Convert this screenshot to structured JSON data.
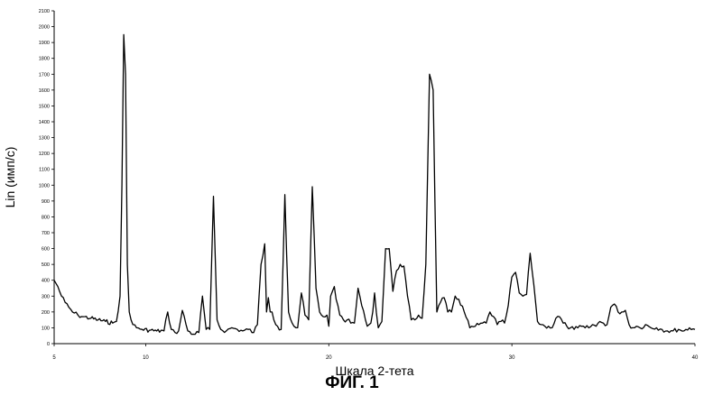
{
  "figure_label": "ФИГ. 1",
  "chart_data": {
    "type": "line",
    "xlabel": "Шкала 2-тета",
    "ylabel": "Lin (имп/с)",
    "xlim": [
      5,
      40
    ],
    "ylim": [
      0,
      2100
    ],
    "x_ticks": [
      5,
      10,
      20,
      30,
      40
    ],
    "y_ticks": [
      0,
      100,
      200,
      300,
      400,
      500,
      600,
      700,
      800,
      900,
      1000,
      1100,
      1200,
      1300,
      1400,
      1500,
      1600,
      1700,
      1800,
      1900,
      2000,
      2100
    ],
    "grid": false,
    "series": [
      {
        "color": "#000000",
        "x": [
          5.0,
          5.2,
          5.4,
          5.6,
          5.8,
          6.0,
          6.3,
          6.6,
          7.0,
          7.4,
          7.8,
          8.2,
          8.4,
          8.6,
          8.7,
          8.8,
          8.9,
          9.0,
          9.1,
          9.2,
          9.3,
          9.5,
          9.8,
          10.2,
          10.6,
          11.0,
          11.2,
          11.4,
          11.6,
          11.8,
          12.0,
          12.3,
          12.6,
          12.9,
          13.1,
          13.3,
          13.5,
          13.7,
          13.9,
          14.1,
          14.4,
          14.7,
          15.0,
          15.3,
          15.6,
          15.9,
          16.1,
          16.3,
          16.5,
          16.6,
          16.7,
          16.8,
          16.9,
          17.0,
          17.2,
          17.4,
          17.6,
          17.8,
          18.0,
          18.1,
          18.3,
          18.5,
          18.7,
          18.9,
          19.1,
          19.3,
          19.5,
          19.7,
          19.9,
          20.0,
          20.1,
          20.2,
          20.3,
          20.4,
          20.5,
          20.6,
          20.8,
          21.0,
          21.2,
          21.4,
          21.6,
          21.8,
          22.0,
          22.1,
          22.2,
          22.3,
          22.4,
          22.5,
          22.7,
          22.9,
          23.1,
          23.3,
          23.5,
          23.7,
          23.9,
          24.1,
          24.3,
          24.5,
          24.7,
          24.9,
          25.1,
          25.3,
          25.5,
          25.7,
          25.9,
          26.1,
          26.3,
          26.5,
          26.7,
          26.9,
          27.1,
          27.4,
          27.7,
          28.0,
          28.2,
          28.4,
          28.6,
          28.8,
          29.0,
          29.2,
          29.4,
          29.6,
          29.8,
          30.0,
          30.2,
          30.4,
          30.6,
          30.8,
          31.0,
          31.2,
          31.4,
          31.6,
          31.8,
          32.0,
          32.2,
          32.4,
          32.6,
          32.8,
          33.0,
          33.2,
          33.4,
          33.6,
          33.8,
          34.0,
          34.2,
          34.4,
          34.6,
          34.8,
          35.0,
          35.2,
          35.4,
          35.6,
          35.8,
          36.0,
          36.2,
          36.4,
          36.6,
          36.8,
          37.0,
          37.3,
          37.6,
          37.9,
          38.2,
          38.5,
          38.8,
          39.1,
          39.4,
          39.7,
          40.0
        ],
        "y": [
          400,
          360,
          300,
          260,
          230,
          200,
          180,
          170,
          160,
          150,
          140,
          130,
          140,
          300,
          1000,
          1950,
          1700,
          500,
          200,
          150,
          120,
          100,
          90,
          85,
          80,
          80,
          200,
          90,
          70,
          80,
          210,
          80,
          60,
          70,
          300,
          90,
          90,
          930,
          150,
          90,
          80,
          100,
          90,
          80,
          90,
          70,
          120,
          500,
          630,
          200,
          290,
          200,
          200,
          150,
          110,
          90,
          940,
          200,
          130,
          110,
          100,
          320,
          180,
          150,
          990,
          350,
          200,
          170,
          180,
          110,
          300,
          330,
          360,
          280,
          240,
          180,
          150,
          150,
          130,
          130,
          350,
          240,
          150,
          110,
          120,
          130,
          200,
          320,
          100,
          140,
          600,
          600,
          330,
          460,
          500,
          490,
          300,
          150,
          150,
          180,
          160,
          500,
          1700,
          1600,
          200,
          260,
          290,
          200,
          200,
          300,
          280,
          200,
          100,
          110,
          120,
          130,
          130,
          200,
          170,
          120,
          140,
          130,
          240,
          420,
          450,
          320,
          300,
          310,
          570,
          370,
          140,
          120,
          110,
          110,
          100,
          160,
          170,
          130,
          110,
          100,
          90,
          100,
          110,
          100,
          100,
          120,
          110,
          140,
          130,
          120,
          230,
          250,
          200,
          200,
          210,
          120,
          100,
          110,
          100,
          120,
          100,
          100,
          90,
          80,
          80,
          90,
          80,
          100,
          90
        ]
      }
    ]
  }
}
